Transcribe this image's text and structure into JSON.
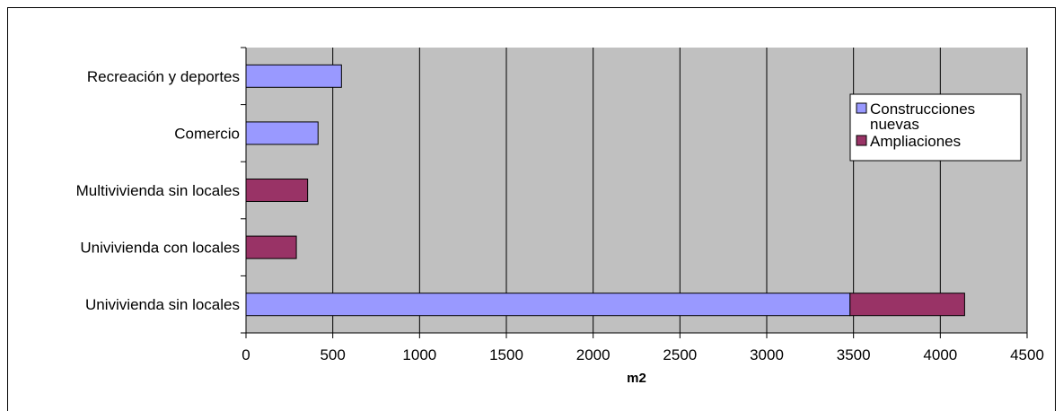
{
  "chart_data": {
    "type": "bar",
    "orientation": "horizontal",
    "stacked": true,
    "categories": [
      "Recreación y deportes",
      "Comercio",
      "Multivivienda sin locales",
      "Univivienda con locales",
      "Univivienda sin locales"
    ],
    "series": [
      {
        "name": "Construcciones nuevas",
        "color": "#9999ff",
        "values": [
          550,
          415,
          0,
          0,
          3480
        ]
      },
      {
        "name": "Ampliaciones",
        "color": "#993366",
        "values": [
          0,
          0,
          355,
          290,
          660
        ]
      }
    ],
    "legend_labels": [
      {
        "series": 0,
        "lines": [
          "Construcciones",
          "nuevas"
        ]
      },
      {
        "series": 1,
        "lines": [
          "Ampliaciones"
        ]
      }
    ],
    "title": "",
    "xlabel": "m2",
    "ylabel": "",
    "xlim": [
      0,
      4500
    ],
    "xticks": [
      0,
      500,
      1000,
      1500,
      2000,
      2500,
      3000,
      3500,
      4000,
      4500
    ],
    "grid": true,
    "legend_position": "right",
    "plot_background": "#c0c0c0"
  }
}
